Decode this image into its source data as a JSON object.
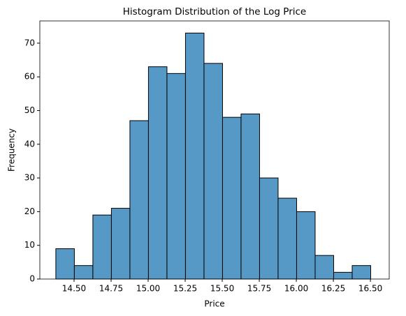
{
  "chart_data": {
    "type": "histogram",
    "title": "Histogram Distribution of the Log Price",
    "x_label": "Price",
    "y_label": "Frequency",
    "bins": [
      14.377,
      14.502,
      14.627,
      14.752,
      14.877,
      15.002,
      15.127,
      15.252,
      15.377,
      15.502,
      15.627,
      15.752,
      15.877,
      16.002,
      16.127,
      16.252,
      16.377,
      16.502
    ],
    "values": [
      9,
      4,
      19,
      21,
      47,
      63,
      61,
      73,
      64,
      48,
      49,
      30,
      24,
      20,
      7,
      2,
      4
    ],
    "color": "#5799c6",
    "edge_color": "#000000",
    "xlim": [
      14.269,
      16.627
    ],
    "ylim": [
      0,
      76.6
    ],
    "xticks": [
      {
        "value": 14.5,
        "label": "14.50"
      },
      {
        "value": 14.75,
        "label": "14.75"
      },
      {
        "value": 15.0,
        "label": "15.00"
      },
      {
        "value": 15.25,
        "label": "15.25"
      },
      {
        "value": 15.5,
        "label": "15.50"
      },
      {
        "value": 15.75,
        "label": "15.75"
      },
      {
        "value": 16.0,
        "label": "16.00"
      },
      {
        "value": 16.25,
        "label": "16.25"
      },
      {
        "value": 16.5,
        "label": "16.50"
      }
    ],
    "yticks": [
      0,
      10,
      20,
      30,
      40,
      50,
      60,
      70
    ],
    "grid": false
  }
}
